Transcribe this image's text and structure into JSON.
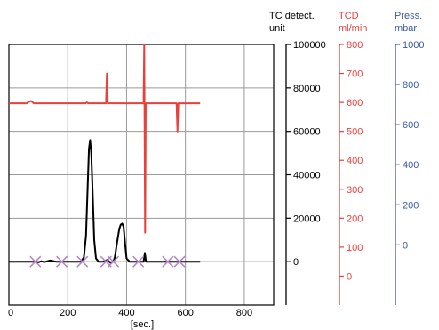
{
  "chart_data": {
    "type": "line",
    "x_axis": {
      "label": "[sec.]",
      "ticks": [
        "0",
        "200",
        "400",
        "600",
        "800"
      ],
      "range": [
        0,
        900
      ]
    },
    "axes": [
      {
        "id": "tc",
        "title": [
          "TC detect.",
          "unit"
        ],
        "color": "#000000",
        "range": [
          -20000,
          100000
        ],
        "ticks": [
          "100000",
          "80000",
          "60000",
          "40000",
          "20000",
          "0"
        ]
      },
      {
        "id": "tcd",
        "title": [
          "TCD",
          "ml/min"
        ],
        "color": "#e8403a",
        "range": [
          -100,
          800
        ],
        "ticks": [
          "800",
          "700",
          "600",
          "500",
          "400",
          "300",
          "200",
          "100",
          "0"
        ]
      },
      {
        "id": "press",
        "title": [
          "Press.",
          "mbar"
        ],
        "color": "#3a5aa8",
        "range": [
          -300,
          1000
        ],
        "ticks": [
          "1000",
          "800",
          "600",
          "400",
          "200",
          "0"
        ]
      }
    ],
    "grid": true,
    "series": [
      {
        "axis": "tc",
        "color": "#000000",
        "points": [
          [
            0,
            0
          ],
          [
            90,
            0
          ],
          [
            100,
            -300
          ],
          [
            110,
            200
          ],
          [
            120,
            -200
          ],
          [
            140,
            500
          ],
          [
            160,
            0
          ],
          [
            200,
            0
          ],
          [
            245,
            0
          ],
          [
            255,
            2000
          ],
          [
            262,
            12000
          ],
          [
            268,
            35000
          ],
          [
            272,
            52000
          ],
          [
            276,
            56000
          ],
          [
            280,
            50000
          ],
          [
            285,
            30000
          ],
          [
            290,
            10000
          ],
          [
            296,
            1500
          ],
          [
            305,
            0
          ],
          [
            320,
            0
          ],
          [
            335,
            800
          ],
          [
            345,
            -500
          ],
          [
            355,
            0
          ],
          [
            360,
            2000
          ],
          [
            368,
            9000
          ],
          [
            375,
            15000
          ],
          [
            380,
            17000
          ],
          [
            385,
            17500
          ],
          [
            390,
            16000
          ],
          [
            395,
            8000
          ],
          [
            400,
            1500
          ],
          [
            410,
            0
          ],
          [
            440,
            0
          ],
          [
            458,
            0
          ],
          [
            462,
            4000
          ],
          [
            466,
            0
          ],
          [
            500,
            0
          ],
          [
            650,
            0
          ]
        ]
      },
      {
        "axis": "tcd",
        "color": "#e8403a",
        "points": [
          [
            0,
            597
          ],
          [
            60,
            597
          ],
          [
            65,
            600
          ],
          [
            75,
            605
          ],
          [
            85,
            597
          ],
          [
            260,
            597
          ],
          [
            265,
            600
          ],
          [
            270,
            597
          ],
          [
            330,
            597
          ],
          [
            333,
            700
          ],
          [
            336,
            597
          ],
          [
            458,
            597
          ],
          [
            460,
            800
          ],
          [
            463,
            150
          ],
          [
            465,
            597
          ],
          [
            570,
            597
          ],
          [
            573,
            500
          ],
          [
            576,
            597
          ],
          [
            650,
            597
          ]
        ]
      }
    ],
    "markers": {
      "axis": "tc",
      "symbol": "x",
      "color": "#b584c9",
      "x": [
        90,
        180,
        250,
        330,
        355,
        440,
        540,
        580
      ],
      "y": 0
    }
  }
}
